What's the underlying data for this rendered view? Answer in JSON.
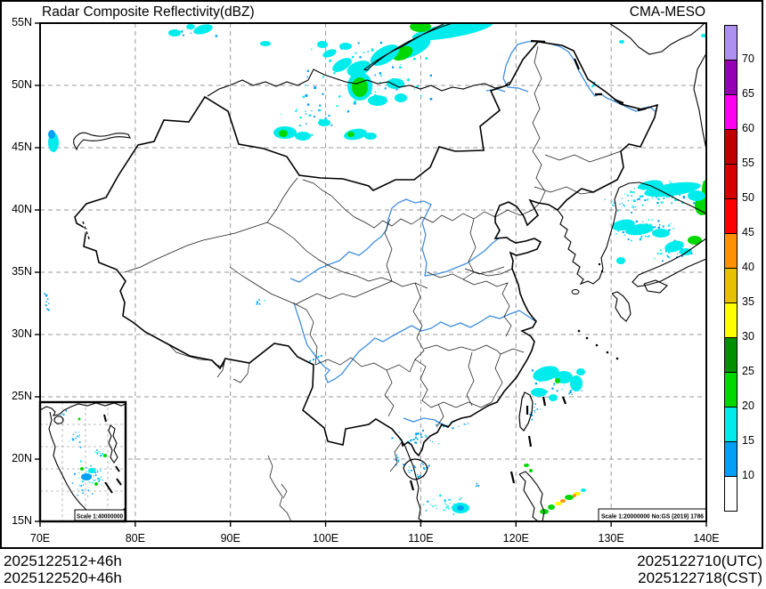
{
  "header": {
    "title": "Radar Composite Reflectivity(dBZ)",
    "model": "CMA-MESO"
  },
  "footer": {
    "left": [
      "2025122512+46h",
      "2025122520+46h"
    ],
    "right": [
      "2025122710(UTC)",
      "2025122718(CST)"
    ]
  },
  "scale": {
    "main": "Scale 1:20000000 No:GS (2019) 1786",
    "inset": "Scale 1:40000000"
  },
  "axes": {
    "lat": [
      {
        "v": 55,
        "t": "55N"
      },
      {
        "v": 50,
        "t": "50N"
      },
      {
        "v": 45,
        "t": "45N"
      },
      {
        "v": 40,
        "t": "40N"
      },
      {
        "v": 35,
        "t": "35N"
      },
      {
        "v": 30,
        "t": "30N"
      },
      {
        "v": 25,
        "t": "25N"
      },
      {
        "v": 20,
        "t": "20N"
      },
      {
        "v": 15,
        "t": "15N"
      }
    ],
    "lon": [
      {
        "v": 70,
        "t": "70E"
      },
      {
        "v": 80,
        "t": "80E"
      },
      {
        "v": 90,
        "t": "90E"
      },
      {
        "v": 100,
        "t": "100E"
      },
      {
        "v": 110,
        "t": "110E"
      },
      {
        "v": 120,
        "t": "120E"
      },
      {
        "v": 130,
        "t": "130E"
      },
      {
        "v": 140,
        "t": "140E"
      }
    ],
    "grid_lon": [
      80,
      90,
      100,
      110,
      120,
      130
    ],
    "grid_lat": [
      20,
      25,
      30,
      35,
      40,
      45,
      50
    ]
  },
  "colorbar": {
    "cells_top_to_bottom": [
      "#AD90F0",
      "#9600B4",
      "#FF00F0",
      "#C00000",
      "#D60000",
      "#FF0000",
      "#FF9000",
      "#E7C000",
      "#FFFF00",
      "#019000",
      "#00D800",
      "#00ECEC",
      "#01A0F6",
      "#FFFFFF"
    ],
    "labels_top_to_bottom": [
      "70",
      "65",
      "60",
      "55",
      "50",
      "45",
      "40",
      "35",
      "30",
      "25",
      "20",
      "15",
      "10"
    ]
  },
  "echoes": {
    "palette": {
      "blue": "#01A0F6",
      "cyan": "#00ECEC",
      "green": "#00D800",
      "dgreen": "#019000",
      "yellow": "#FFFF00",
      "gold": "#E7C000",
      "orange": "#FF9000",
      "red": "#FF0000"
    },
    "patches": [
      [
        508,
        34,
        46,
        8,
        -10,
        "cyan"
      ],
      [
        472,
        30,
        12,
        6,
        0,
        "green"
      ],
      [
        463,
        54,
        22,
        9,
        -25,
        "cyan"
      ],
      [
        452,
        60,
        12,
        7,
        -25,
        "green"
      ],
      [
        432,
        62,
        18,
        9,
        -30,
        "cyan"
      ],
      [
        403,
        77,
        14,
        8,
        -20,
        "cyan"
      ],
      [
        404,
        97,
        14,
        16,
        0,
        "cyan"
      ],
      [
        404,
        98,
        9,
        11,
        0,
        "green"
      ],
      [
        384,
        73,
        12,
        6,
        -30,
        "cyan"
      ],
      [
        424,
        113,
        11,
        6,
        0,
        "cyan"
      ],
      [
        444,
        94,
        10,
        6,
        0,
        "cyan"
      ],
      [
        450,
        110,
        7,
        5,
        0,
        "cyan"
      ],
      [
        370,
        60,
        8,
        4,
        -20,
        "cyan"
      ],
      [
        362,
        50,
        6,
        4,
        0,
        "cyan"
      ],
      [
        388,
        52,
        7,
        4,
        0,
        "cyan"
      ],
      [
        320,
        149,
        13,
        7,
        0,
        "cyan"
      ],
      [
        318,
        150,
        5,
        4,
        0,
        "green"
      ],
      [
        340,
        153,
        9,
        5,
        0,
        "cyan"
      ],
      [
        364,
        138,
        7,
        4,
        0,
        "cyan"
      ],
      [
        399,
        151,
        13,
        6,
        -10,
        "cyan"
      ],
      [
        416,
        153,
        7,
        4,
        0,
        "cyan"
      ],
      [
        394,
        151,
        4,
        3,
        0,
        "green"
      ],
      [
        228,
        33,
        11,
        5,
        -15,
        "cyan"
      ],
      [
        196,
        37,
        7,
        4,
        0,
        "cyan"
      ],
      [
        214,
        30,
        5,
        3,
        0,
        "cyan"
      ],
      [
        298,
        49,
        6,
        3,
        0,
        "cyan"
      ],
      [
        60,
        160,
        6,
        11,
        0,
        "cyan"
      ],
      [
        58,
        151,
        4,
        5,
        0,
        "blue"
      ],
      [
        755,
        213,
        32,
        7,
        -8,
        "cyan"
      ],
      [
        730,
        208,
        14,
        5,
        -10,
        "cyan"
      ],
      [
        788,
        231,
        8,
        11,
        0,
        "green"
      ],
      [
        793,
        214,
        5,
        12,
        0,
        "green"
      ],
      [
        782,
        220,
        10,
        6,
        0,
        "cyan"
      ],
      [
        700,
        253,
        13,
        6,
        -10,
        "cyan"
      ],
      [
        718,
        258,
        16,
        6,
        -8,
        "cyan"
      ],
      [
        742,
        262,
        10,
        5,
        0,
        "cyan"
      ],
      [
        757,
        277,
        11,
        6,
        -15,
        "cyan"
      ],
      [
        780,
        270,
        8,
        5,
        0,
        "green"
      ],
      [
        770,
        283,
        7,
        4,
        0,
        "cyan"
      ],
      [
        697,
        293,
        5,
        4,
        0,
        "cyan"
      ],
      [
        613,
        420,
        15,
        8,
        -15,
        "cyan"
      ],
      [
        633,
        424,
        10,
        7,
        0,
        "cyan"
      ],
      [
        647,
        431,
        7,
        9,
        0,
        "cyan"
      ],
      [
        605,
        441,
        9,
        5,
        0,
        "cyan"
      ],
      [
        621,
        447,
        5,
        4,
        0,
        "cyan"
      ],
      [
        626,
        428,
        3,
        3,
        0,
        "green"
      ],
      [
        652,
        418,
        5,
        4,
        0,
        "cyan"
      ],
      [
        517,
        571,
        10,
        6,
        0,
        "cyan"
      ],
      [
        517,
        571,
        4,
        3,
        0,
        "blue"
      ],
      [
        611,
        575,
        5,
        3,
        0,
        "green"
      ],
      [
        619,
        570,
        4,
        3,
        0,
        "green"
      ],
      [
        627,
        566,
        4,
        2,
        0,
        "yellow"
      ],
      [
        632,
        563,
        3,
        2,
        0,
        "orange"
      ],
      [
        639,
        559,
        5,
        3,
        0,
        "green"
      ],
      [
        648,
        555,
        4,
        2,
        0,
        "yellow"
      ],
      [
        645,
        557,
        2,
        2,
        0,
        "orange"
      ],
      [
        655,
        551,
        3,
        2,
        0,
        "cyan"
      ],
      [
        591,
        523,
        3,
        2,
        0,
        "green"
      ],
      [
        596,
        529,
        2,
        2,
        0,
        "green"
      ],
      [
        790,
        40,
        3,
        2,
        0,
        "cyan"
      ],
      [
        795,
        46,
        2,
        2,
        0,
        "cyan"
      ],
      [
        698,
        47,
        3,
        2,
        0,
        "cyan"
      ]
    ],
    "speckles": [
      [
        420,
        88,
        85,
        52,
        70,
        1,
        3,
        "cyan,cyan,blue"
      ],
      [
        214,
        35,
        30,
        7,
        20,
        1,
        2.5,
        "cyan,blue"
      ],
      [
        350,
        130,
        40,
        25,
        25,
        1,
        2.5,
        "cyan,blue"
      ],
      [
        748,
        218,
        52,
        16,
        80,
        1,
        2.6,
        "cyan,cyan,blue"
      ],
      [
        722,
        258,
        42,
        13,
        60,
        1,
        2.4,
        "cyan,blue"
      ],
      [
        755,
        282,
        26,
        12,
        35,
        1,
        2.2,
        "cyan,blue"
      ],
      [
        700,
        230,
        30,
        10,
        20,
        1,
        2,
        "blue,cyan"
      ],
      [
        625,
        433,
        30,
        20,
        30,
        1,
        2.4,
        "cyan,blue"
      ],
      [
        600,
        462,
        9,
        12,
        10,
        1,
        2,
        "blue"
      ],
      [
        467,
        491,
        30,
        10,
        26,
        1,
        2.2,
        "blue,blue,cyan"
      ],
      [
        508,
        478,
        24,
        8,
        18,
        1,
        2,
        "blue"
      ],
      [
        470,
        528,
        20,
        14,
        22,
        1,
        2,
        "blue"
      ],
      [
        446,
        516,
        7,
        9,
        8,
        1,
        2,
        "blue"
      ],
      [
        498,
        566,
        26,
        13,
        26,
        1,
        2.2,
        "blue,cyan"
      ],
      [
        535,
        546,
        4,
        3,
        4,
        1,
        2,
        "blue"
      ],
      [
        52,
        338,
        5,
        18,
        10,
        1,
        2.2,
        "blue"
      ],
      [
        290,
        341,
        9,
        5,
        6,
        1,
        2,
        "blue,cyan"
      ],
      [
        354,
        402,
        9,
        7,
        6,
        1,
        2,
        "blue"
      ],
      [
        668,
        96,
        10,
        6,
        6,
        1,
        2,
        "cyan,blue"
      ]
    ],
    "inset_patches": [
      [
        97,
        536,
        6,
        4,
        0,
        "blue"
      ],
      [
        103,
        529,
        4,
        3,
        0,
        "cyan"
      ],
      [
        92,
        527,
        2,
        2,
        0,
        "green"
      ],
      [
        118,
        512,
        2,
        2,
        0,
        "green"
      ],
      [
        108,
        544,
        2,
        2,
        0,
        "green"
      ],
      [
        89,
        471,
        1.5,
        1.5,
        0,
        "green"
      ]
    ],
    "inset_speckles": [
      [
        100,
        533,
        20,
        15,
        40,
        0.8,
        2,
        "blue,blue,cyan"
      ],
      [
        83,
        495,
        11,
        16,
        16,
        0.8,
        1.8,
        "blue"
      ],
      [
        112,
        508,
        9,
        8,
        12,
        0.8,
        1.8,
        "blue,cyan"
      ],
      [
        72,
        465,
        8,
        5,
        6,
        0.8,
        1.5,
        "blue"
      ],
      [
        95,
        550,
        14,
        8,
        12,
        0.8,
        1.8,
        "blue"
      ]
    ]
  }
}
